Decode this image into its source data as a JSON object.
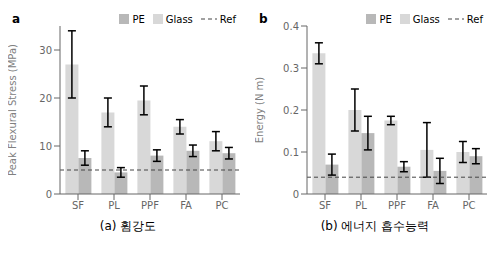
{
  "chart_data": [
    {
      "type": "bar",
      "title": "a",
      "ylabel": "Peak Flexural Stress (MPa)",
      "categories": [
        "SF",
        "PL",
        "PPF",
        "FA",
        "PC"
      ],
      "series": [
        {
          "name": "PE",
          "color": "#b8b8b8",
          "values": [
            7.5,
            4.5,
            8.0,
            9.0,
            8.5
          ],
          "errors": [
            1.5,
            1.0,
            1.2,
            1.2,
            1.2
          ]
        },
        {
          "name": "Glass",
          "color": "#d8d8d8",
          "values": [
            27.0,
            17.0,
            19.5,
            14.0,
            11.0
          ],
          "errors": [
            7.0,
            3.0,
            3.0,
            1.5,
            2.0
          ]
        }
      ],
      "reference_lines": [
        {
          "name": "Ref",
          "value": 5.0,
          "color": "#444444",
          "line_style": "dashed"
        }
      ],
      "ylim": [
        0,
        35
      ],
      "yticks": [
        0,
        10,
        20,
        30
      ],
      "grid": false,
      "legend": "upper right",
      "annotations": [
        "(a)  휨강도"
      ]
    },
    {
      "type": "bar",
      "title": "b",
      "ylabel": "Energy (N m)",
      "categories": [
        "SF",
        "PL",
        "PPF",
        "FA",
        "PC"
      ],
      "series": [
        {
          "name": "PE",
          "color": "#b8b8b8",
          "values": [
            0.07,
            0.145,
            0.065,
            0.055,
            0.09
          ],
          "errors": [
            0.025,
            0.04,
            0.012,
            0.03,
            0.018
          ]
        },
        {
          "name": "Glass",
          "color": "#d8d8d8",
          "values": [
            0.335,
            0.2,
            0.175,
            0.105,
            0.1
          ],
          "errors": [
            0.025,
            0.05,
            0.01,
            0.065,
            0.025
          ]
        }
      ],
      "reference_lines": [
        {
          "name": "Ref",
          "value": 0.04,
          "color": "#444444",
          "line_style": "dashed"
        }
      ],
      "ylim": [
        0,
        0.4
      ],
      "yticks": [
        0,
        0.1,
        0.2,
        0.3,
        0.4
      ],
      "grid": false,
      "legend": "upper right",
      "annotations": [
        "(b)  에너지 흡수능력"
      ]
    }
  ]
}
